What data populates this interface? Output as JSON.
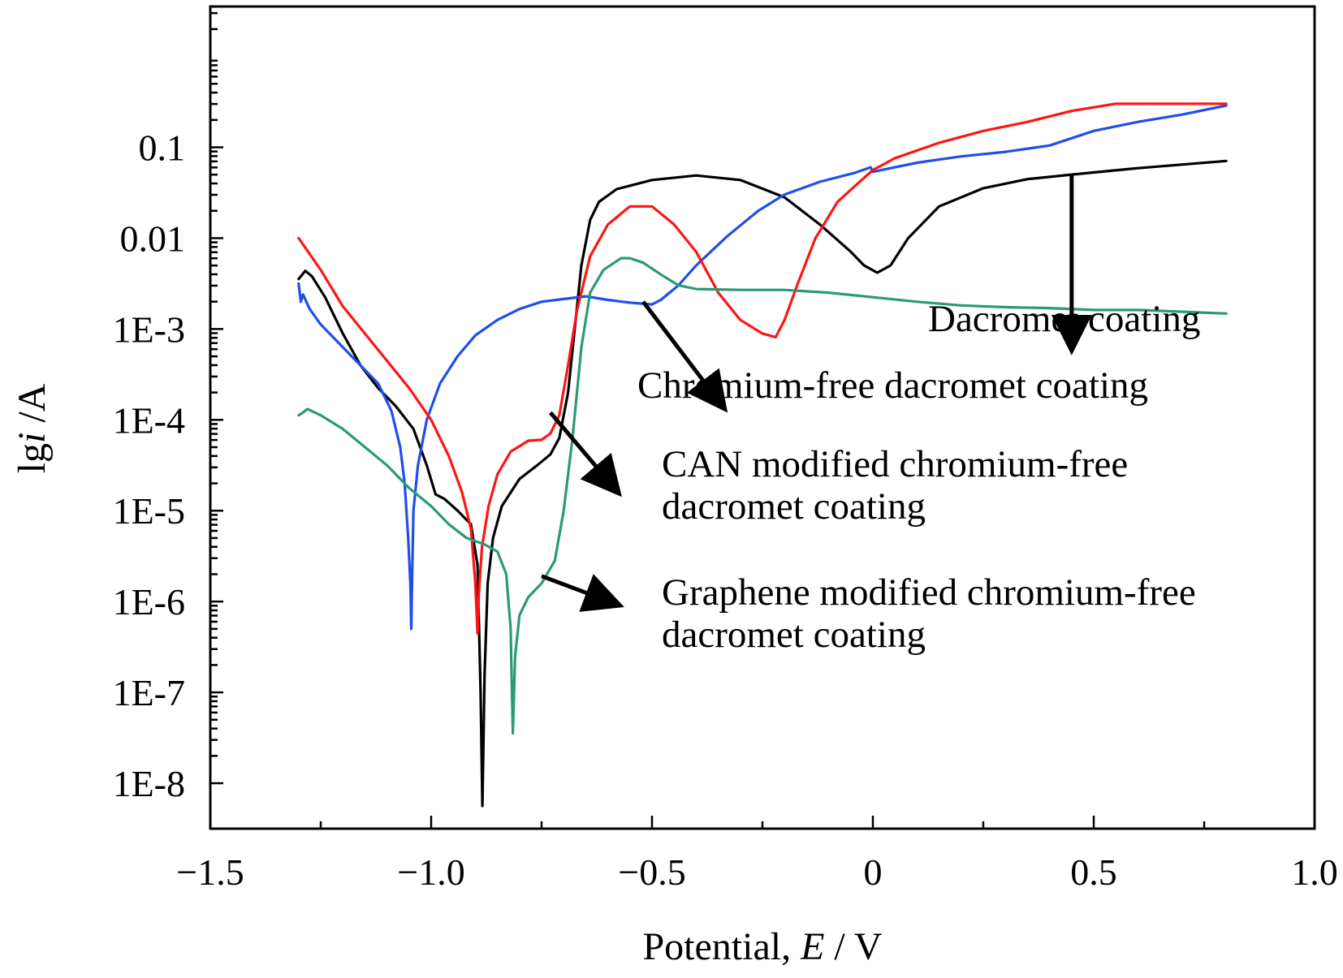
{
  "chart_data": {
    "type": "line",
    "title": "",
    "xlabel": {
      "prefix": "Potential, ",
      "italic": "E",
      "suffix": " / V"
    },
    "ylabel": {
      "prefix": "lg",
      "italic": "i",
      "suffix": " /A"
    },
    "xlim": [
      -1.5,
      1.0
    ],
    "ylim_log10": [
      -8.5,
      0.55
    ],
    "y_scale": "log",
    "x_ticks": [
      {
        "value": -1.5,
        "label": "−1.5"
      },
      {
        "value": -1.0,
        "label": "−1.0"
      },
      {
        "value": -0.5,
        "label": "−0.5"
      },
      {
        "value": 0.0,
        "label": "0"
      },
      {
        "value": 0.5,
        "label": "0.5"
      },
      {
        "value": 1.0,
        "label": "1.0"
      }
    ],
    "y_ticks": [
      {
        "log": -1,
        "label": "0.1"
      },
      {
        "log": -2,
        "label": "0.01"
      },
      {
        "log": -3,
        "label": "1E-3"
      },
      {
        "log": -4,
        "label": "1E-4"
      },
      {
        "log": -5,
        "label": "1E-5"
      },
      {
        "log": -6,
        "label": "1E-6"
      },
      {
        "log": -7,
        "label": "1E-7"
      },
      {
        "log": -8,
        "label": "1E-8"
      }
    ],
    "grid": false,
    "series": [
      {
        "name": "Dacromet coating",
        "color": "#000000",
        "points": [
          [
            -1.3,
            -2.45
          ],
          [
            -1.285,
            -2.36
          ],
          [
            -1.27,
            -2.42
          ],
          [
            -1.24,
            -2.65
          ],
          [
            -1.2,
            -3.05
          ],
          [
            -1.16,
            -3.4
          ],
          [
            -1.12,
            -3.65
          ],
          [
            -1.08,
            -3.85
          ],
          [
            -1.04,
            -4.1
          ],
          [
            -1.01,
            -4.5
          ],
          [
            -0.99,
            -4.82
          ],
          [
            -0.97,
            -4.87
          ],
          [
            -0.94,
            -5.0
          ],
          [
            -0.91,
            -5.15
          ],
          [
            -0.895,
            -5.6
          ],
          [
            -0.888,
            -7.0
          ],
          [
            -0.884,
            -8.25
          ],
          [
            -0.879,
            -6.8
          ],
          [
            -0.872,
            -5.8
          ],
          [
            -0.86,
            -5.3
          ],
          [
            -0.84,
            -4.95
          ],
          [
            -0.8,
            -4.65
          ],
          [
            -0.76,
            -4.5
          ],
          [
            -0.73,
            -4.38
          ],
          [
            -0.71,
            -4.2
          ],
          [
            -0.69,
            -3.7
          ],
          [
            -0.675,
            -3.0
          ],
          [
            -0.66,
            -2.3
          ],
          [
            -0.64,
            -1.8
          ],
          [
            -0.62,
            -1.6
          ],
          [
            -0.58,
            -1.46
          ],
          [
            -0.5,
            -1.36
          ],
          [
            -0.4,
            -1.31
          ],
          [
            -0.3,
            -1.36
          ],
          [
            -0.2,
            -1.55
          ],
          [
            -0.12,
            -1.85
          ],
          [
            -0.05,
            -2.15
          ],
          [
            -0.02,
            -2.3
          ],
          [
            0.01,
            -2.38
          ],
          [
            0.04,
            -2.3
          ],
          [
            0.08,
            -2.0
          ],
          [
            0.15,
            -1.65
          ],
          [
            0.25,
            -1.45
          ],
          [
            0.35,
            -1.35
          ],
          [
            0.45,
            -1.3
          ],
          [
            0.6,
            -1.23
          ],
          [
            0.8,
            -1.15
          ]
        ]
      },
      {
        "name": "Chromium-free dacromet coating",
        "color": "#1f4fe8",
        "points": [
          [
            -1.3,
            -2.5
          ],
          [
            -1.295,
            -2.7
          ],
          [
            -1.29,
            -2.62
          ],
          [
            -1.275,
            -2.78
          ],
          [
            -1.25,
            -2.95
          ],
          [
            -1.2,
            -3.2
          ],
          [
            -1.15,
            -3.45
          ],
          [
            -1.12,
            -3.6
          ],
          [
            -1.09,
            -3.9
          ],
          [
            -1.07,
            -4.3
          ],
          [
            -1.06,
            -4.7
          ],
          [
            -1.052,
            -5.3
          ],
          [
            -1.047,
            -5.8
          ],
          [
            -1.045,
            -6.3
          ],
          [
            -1.043,
            -5.7
          ],
          [
            -1.04,
            -5.0
          ],
          [
            -1.03,
            -4.5
          ],
          [
            -1.01,
            -4.0
          ],
          [
            -0.98,
            -3.6
          ],
          [
            -0.94,
            -3.3
          ],
          [
            -0.9,
            -3.07
          ],
          [
            -0.85,
            -2.9
          ],
          [
            -0.8,
            -2.78
          ],
          [
            -0.75,
            -2.7
          ],
          [
            -0.7,
            -2.67
          ],
          [
            -0.65,
            -2.64
          ],
          [
            -0.6,
            -2.68
          ],
          [
            -0.55,
            -2.71
          ],
          [
            -0.5,
            -2.73
          ],
          [
            -0.48,
            -2.68
          ],
          [
            -0.44,
            -2.52
          ],
          [
            -0.4,
            -2.3
          ],
          [
            -0.33,
            -1.98
          ],
          [
            -0.26,
            -1.7
          ],
          [
            -0.2,
            -1.52
          ],
          [
            -0.12,
            -1.38
          ],
          [
            -0.04,
            -1.28
          ],
          [
            -0.005,
            -1.22
          ],
          [
            0.0,
            -1.27
          ],
          [
            0.1,
            -1.17
          ],
          [
            0.2,
            -1.1
          ],
          [
            0.3,
            -1.05
          ],
          [
            0.4,
            -0.98
          ],
          [
            0.5,
            -0.82
          ],
          [
            0.6,
            -0.72
          ],
          [
            0.7,
            -0.64
          ],
          [
            0.8,
            -0.54
          ]
        ]
      },
      {
        "name": "CAN modified chromium-free dacromet coating",
        "color": "#ff1414",
        "points": [
          [
            -1.3,
            -2.0
          ],
          [
            -1.25,
            -2.35
          ],
          [
            -1.2,
            -2.75
          ],
          [
            -1.15,
            -3.05
          ],
          [
            -1.1,
            -3.35
          ],
          [
            -1.05,
            -3.65
          ],
          [
            -1.0,
            -4.0
          ],
          [
            -0.96,
            -4.4
          ],
          [
            -0.93,
            -4.8
          ],
          [
            -0.91,
            -5.2
          ],
          [
            -0.9,
            -5.8
          ],
          [
            -0.895,
            -6.35
          ],
          [
            -0.892,
            -5.9
          ],
          [
            -0.885,
            -5.4
          ],
          [
            -0.87,
            -4.95
          ],
          [
            -0.85,
            -4.6
          ],
          [
            -0.82,
            -4.35
          ],
          [
            -0.78,
            -4.23
          ],
          [
            -0.75,
            -4.22
          ],
          [
            -0.73,
            -4.15
          ],
          [
            -0.71,
            -3.95
          ],
          [
            -0.69,
            -3.4
          ],
          [
            -0.67,
            -2.8
          ],
          [
            -0.64,
            -2.2
          ],
          [
            -0.6,
            -1.85
          ],
          [
            -0.55,
            -1.65
          ],
          [
            -0.5,
            -1.65
          ],
          [
            -0.45,
            -1.85
          ],
          [
            -0.4,
            -2.15
          ],
          [
            -0.35,
            -2.6
          ],
          [
            -0.3,
            -2.9
          ],
          [
            -0.25,
            -3.05
          ],
          [
            -0.22,
            -3.09
          ],
          [
            -0.2,
            -2.9
          ],
          [
            -0.17,
            -2.5
          ],
          [
            -0.13,
            -2.0
          ],
          [
            -0.08,
            -1.6
          ],
          [
            -0.03,
            -1.38
          ],
          [
            0.0,
            -1.25
          ],
          [
            0.05,
            -1.12
          ],
          [
            0.15,
            -0.95
          ],
          [
            0.25,
            -0.82
          ],
          [
            0.35,
            -0.72
          ],
          [
            0.45,
            -0.6
          ],
          [
            0.55,
            -0.52
          ],
          [
            0.7,
            -0.52
          ],
          [
            0.8,
            -0.52
          ]
        ]
      },
      {
        "name": "Graphene modified chromium-free dacromet coating",
        "color": "#2a9a76",
        "points": [
          [
            -1.3,
            -3.95
          ],
          [
            -1.29,
            -3.92
          ],
          [
            -1.28,
            -3.88
          ],
          [
            -1.25,
            -3.95
          ],
          [
            -1.2,
            -4.1
          ],
          [
            -1.15,
            -4.3
          ],
          [
            -1.1,
            -4.5
          ],
          [
            -1.05,
            -4.75
          ],
          [
            -1.0,
            -4.95
          ],
          [
            -0.96,
            -5.15
          ],
          [
            -0.92,
            -5.3
          ],
          [
            -0.88,
            -5.37
          ],
          [
            -0.85,
            -5.45
          ],
          [
            -0.83,
            -5.7
          ],
          [
            -0.82,
            -6.3
          ],
          [
            -0.815,
            -7.45
          ],
          [
            -0.81,
            -6.6
          ],
          [
            -0.8,
            -6.15
          ],
          [
            -0.78,
            -5.95
          ],
          [
            -0.75,
            -5.8
          ],
          [
            -0.72,
            -5.55
          ],
          [
            -0.7,
            -5.0
          ],
          [
            -0.68,
            -4.2
          ],
          [
            -0.66,
            -3.2
          ],
          [
            -0.64,
            -2.6
          ],
          [
            -0.61,
            -2.35
          ],
          [
            -0.57,
            -2.22
          ],
          [
            -0.55,
            -2.22
          ],
          [
            -0.52,
            -2.27
          ],
          [
            -0.48,
            -2.4
          ],
          [
            -0.44,
            -2.52
          ],
          [
            -0.4,
            -2.56
          ],
          [
            -0.3,
            -2.57
          ],
          [
            -0.2,
            -2.57
          ],
          [
            -0.1,
            -2.6
          ],
          [
            0.0,
            -2.65
          ],
          [
            0.1,
            -2.7
          ],
          [
            0.2,
            -2.74
          ],
          [
            0.3,
            -2.76
          ],
          [
            0.4,
            -2.77
          ],
          [
            0.5,
            -2.79
          ],
          [
            0.6,
            -2.79
          ],
          [
            0.7,
            -2.81
          ],
          [
            0.8,
            -2.83
          ]
        ]
      }
    ],
    "annotations": [
      {
        "lines": [
          "Dacromet coating"
        ],
        "target_series": "Dacromet coating",
        "arrow_from": [
          0.45,
          -1.3
        ],
        "arrow_to": [
          0.45,
          -3.2
        ]
      },
      {
        "lines": [
          "Chromium-free dacromet coating"
        ],
        "target_series": "Chromium-free dacromet coating",
        "arrow_from": [
          -0.52,
          -2.7
        ],
        "arrow_to": [
          -0.34,
          -3.85
        ]
      },
      {
        "lines": [
          "CAN modified chromium-free",
          "dacromet coating"
        ],
        "target_series": "CAN modified chromium-free dacromet coating",
        "arrow_from": [
          -0.73,
          -3.92
        ],
        "arrow_to": [
          -0.58,
          -4.78
        ]
      },
      {
        "lines": [
          "Graphene modified chromium-free",
          "dacromet coating"
        ],
        "target_series": "Graphene modified chromium-free dacromet coating",
        "arrow_from": [
          -0.75,
          -5.72
        ],
        "arrow_to": [
          -0.58,
          -6.03
        ]
      }
    ]
  }
}
